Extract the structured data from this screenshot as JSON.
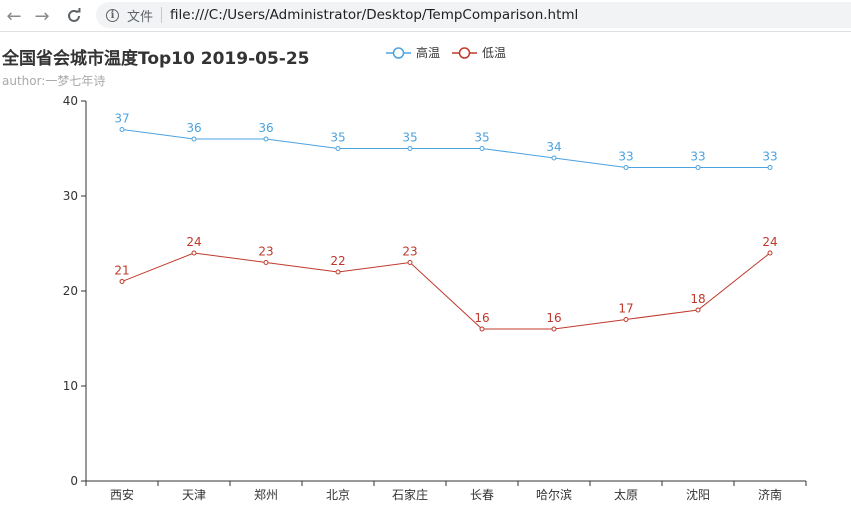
{
  "browser": {
    "file_label": "文件",
    "url": "file:///C:/Users/Administrator/Desktop/TempComparison.html"
  },
  "chart_data": {
    "type": "line",
    "title": "全国省会城市温度Top10 2019-05-25",
    "subtitle": "author:一梦七年诗",
    "categories": [
      "西安",
      "天津",
      "郑州",
      "北京",
      "石家庄",
      "长春",
      "哈尔滨",
      "太原",
      "沈阳",
      "济南"
    ],
    "ylim": [
      0,
      40
    ],
    "yticks": [
      0,
      10,
      20,
      30,
      40
    ],
    "legend_position": "top-center",
    "grid": false,
    "series": [
      {
        "name": "高温",
        "color": "#4ba3e0",
        "values": [
          37,
          36,
          36,
          35,
          35,
          35,
          34,
          33,
          33,
          33
        ]
      },
      {
        "name": "低温",
        "color": "#c0392b",
        "values": [
          21,
          24,
          23,
          22,
          23,
          16,
          16,
          17,
          18,
          24
        ]
      }
    ]
  }
}
